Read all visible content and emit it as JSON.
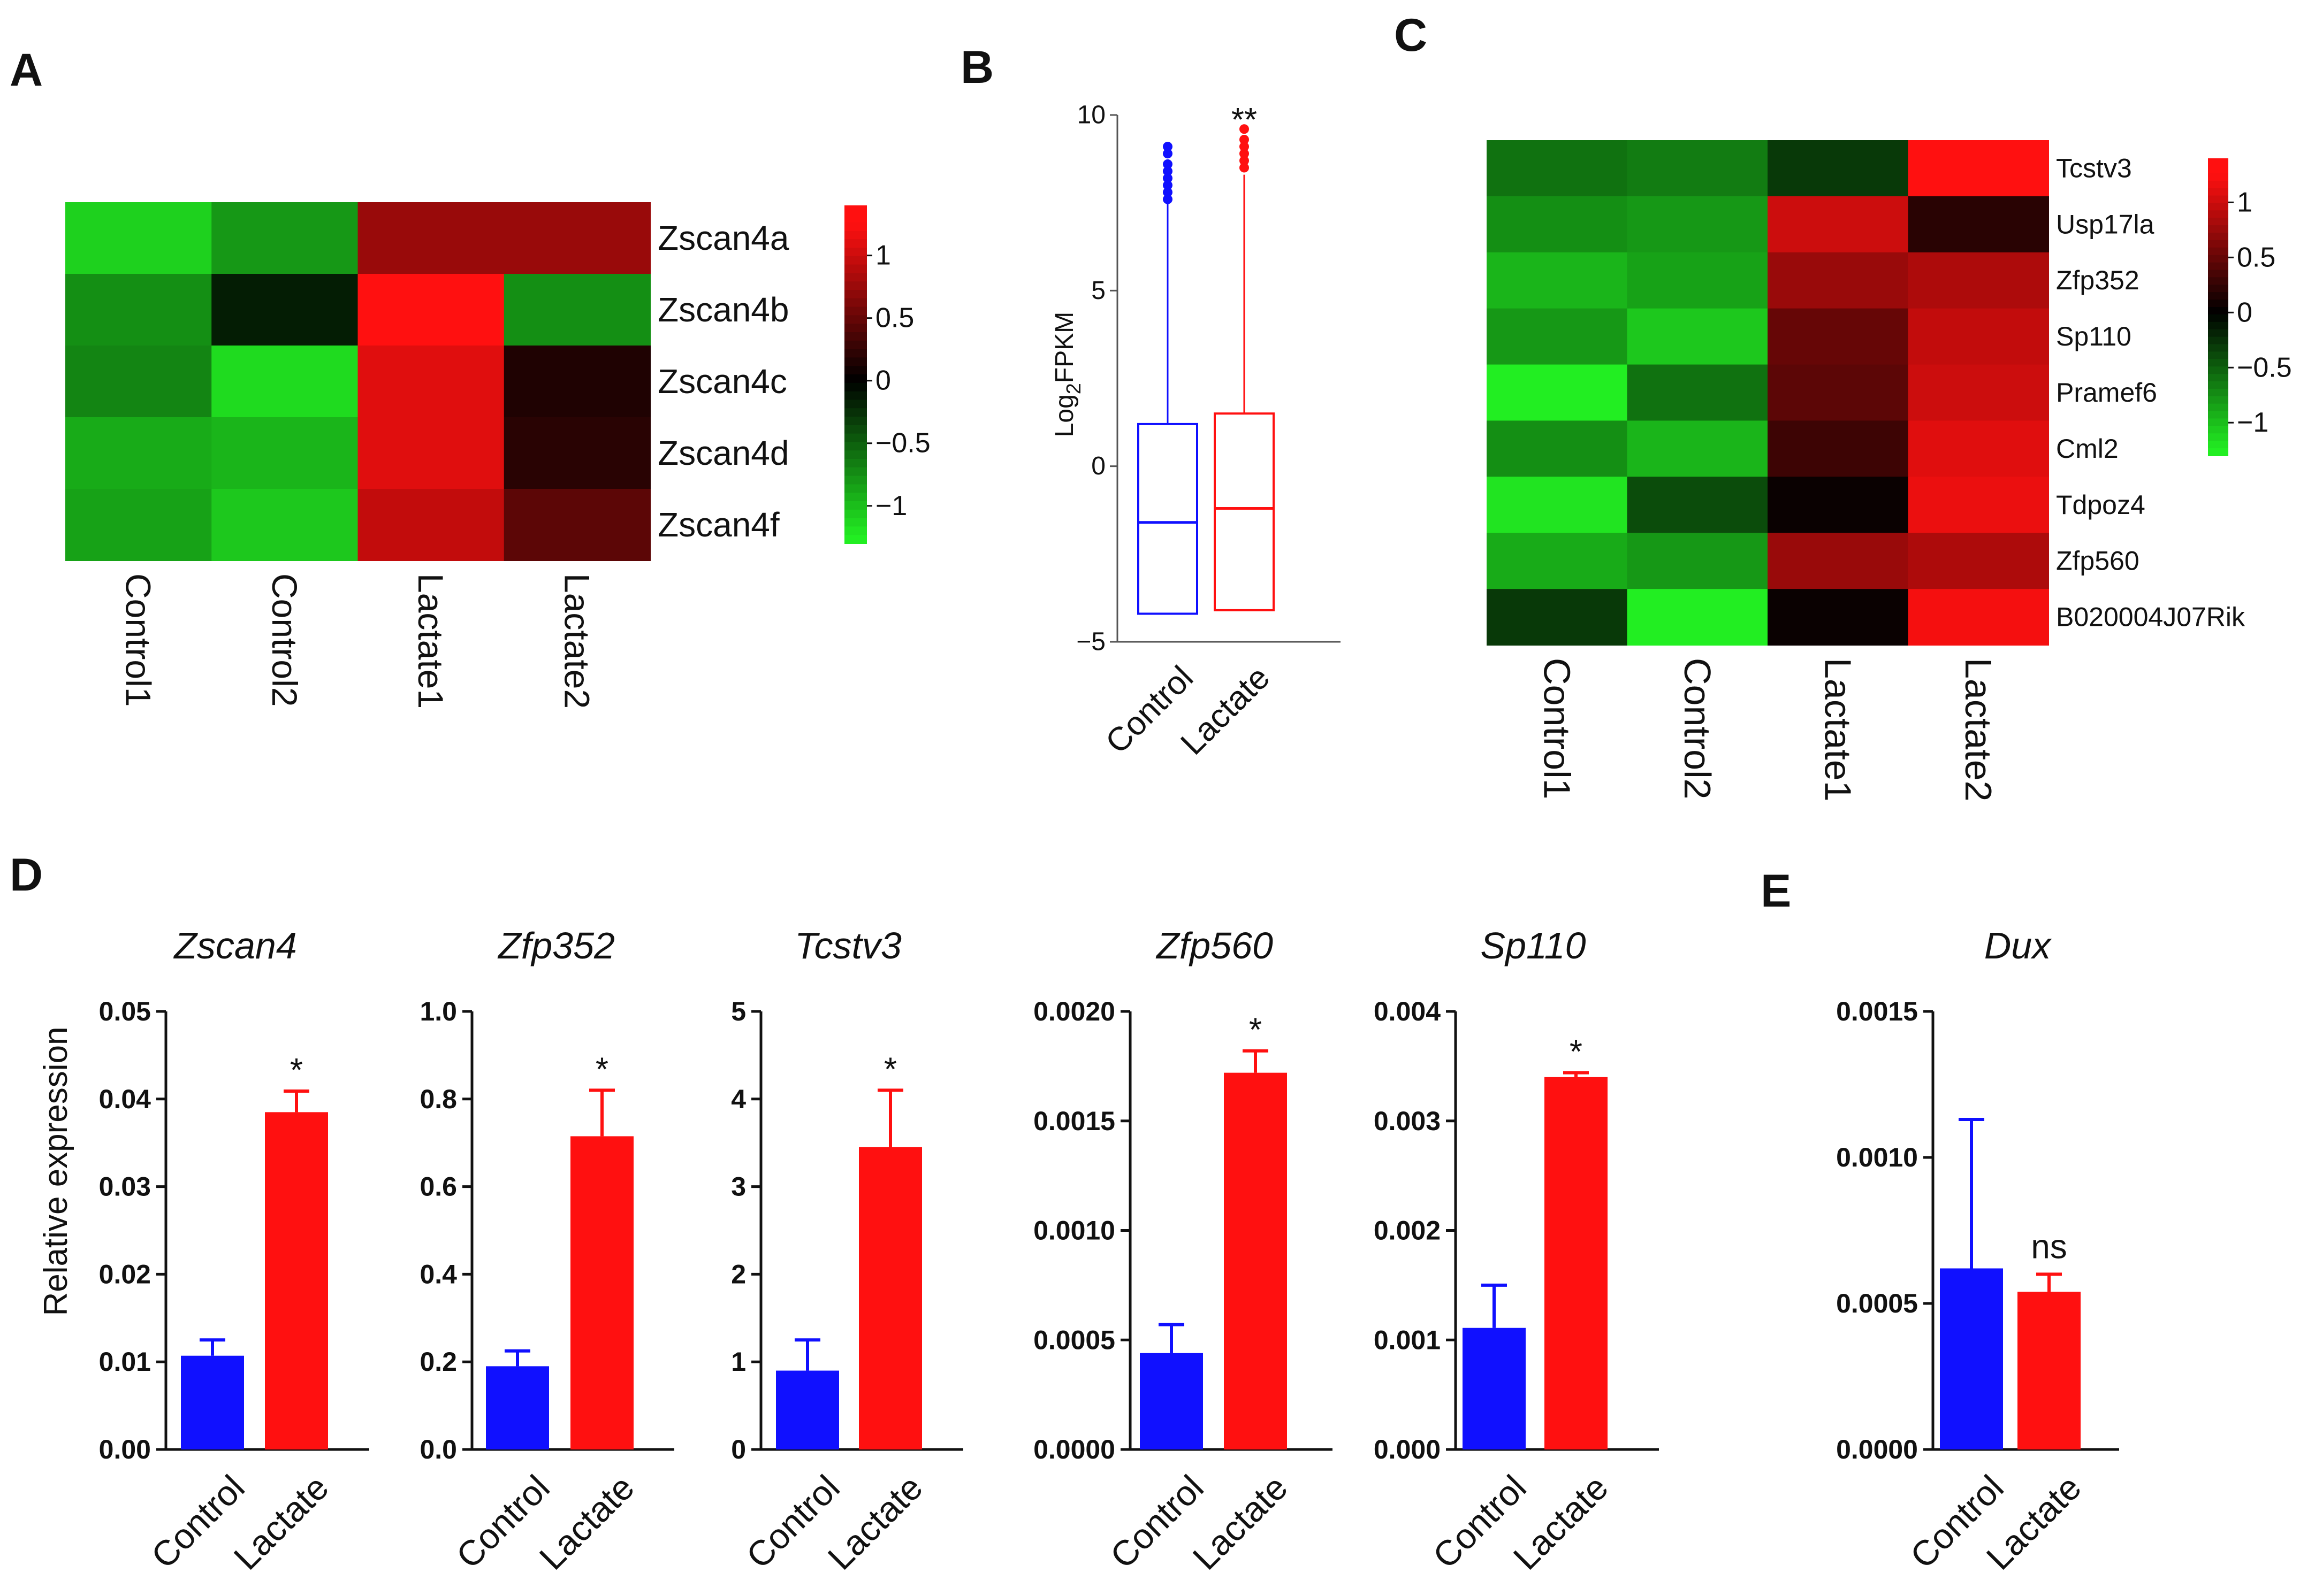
{
  "colors": {
    "control": "#1010ff",
    "lactate": "#ff1010",
    "heat_low": "#22ee22",
    "heat_mid": "#000000",
    "heat_high": "#ff1010"
  },
  "panel_letters": {
    "A": "A",
    "B": "B",
    "C": "C",
    "D": "D",
    "E": "E"
  },
  "chart_data": [
    {
      "id": "A",
      "type": "heatmap",
      "rows": [
        "Zscan4a",
        "Zscan4b",
        "Zscan4c",
        "Zscan4d",
        "Zscan4f"
      ],
      "columns": [
        "Control1",
        "Control2",
        "Lactate1",
        "Lactate2"
      ],
      "values": [
        [
          -1.1,
          -0.8,
          0.75,
          0.75
        ],
        [
          -0.75,
          -0.15,
          1.35,
          -0.75
        ],
        [
          -0.7,
          -1.15,
          1.1,
          0.15
        ],
        [
          -0.9,
          -0.95,
          1.1,
          0.2
        ],
        [
          -0.85,
          -1.05,
          0.95,
          0.45
        ]
      ],
      "scale": {
        "min": -1.3,
        "max": 1.4
      },
      "colorbar_ticks": [
        {
          "value": 1,
          "label": "1"
        },
        {
          "value": 0.5,
          "label": "0.5"
        },
        {
          "value": 0,
          "label": "0"
        },
        {
          "value": -0.5,
          "label": "−0.5"
        },
        {
          "value": -1,
          "label": "−1"
        }
      ]
    },
    {
      "id": "B",
      "type": "box",
      "ylabel_main": "Log",
      "ylabel_sub": "2",
      "ylabel_tail": "FPKM",
      "ylim": [
        -5,
        10
      ],
      "yticks": [
        {
          "value": 10,
          "label": "10"
        },
        {
          "value": 5,
          "label": "5"
        },
        {
          "value": 0,
          "label": "0"
        },
        {
          "value": -5,
          "label": "−5"
        }
      ],
      "categories": [
        "Control",
        "Lactate"
      ],
      "boxes": [
        {
          "name": "Control",
          "whisker_low": -4.2,
          "q1": -4.2,
          "median": -1.6,
          "q3": 1.2,
          "whisker_high": 7.5,
          "outliers": [
            7.6,
            7.8,
            8.0,
            8.2,
            8.4,
            8.6,
            8.9,
            9.1
          ]
        },
        {
          "name": "Lactate",
          "whisker_low": -4.1,
          "q1": -4.1,
          "median": -1.2,
          "q3": 1.5,
          "whisker_high": 8.3,
          "outliers": [
            8.5,
            8.7,
            8.9,
            9.1,
            9.3,
            9.6
          ]
        }
      ],
      "significance": "**"
    },
    {
      "id": "C",
      "type": "heatmap",
      "rows": [
        "Tcstv3",
        "Usp17la",
        "Zfp352",
        "Sp110",
        "Pramef6",
        "Cml2",
        "Tdpoz4",
        "Zfp560",
        "B020004J07Rik"
      ],
      "columns": [
        "Control1",
        "Control2",
        "Lactate1",
        "Lactate2"
      ],
      "values": [
        [
          -0.6,
          -0.65,
          -0.3,
          1.4
        ],
        [
          -0.75,
          -0.8,
          1.0,
          0.2
        ],
        [
          -0.95,
          -0.85,
          0.75,
          0.85
        ],
        [
          -0.8,
          -1.05,
          0.5,
          0.95
        ],
        [
          -1.25,
          -0.6,
          0.45,
          1.0
        ],
        [
          -0.75,
          -0.95,
          0.3,
          1.1
        ],
        [
          -1.2,
          -0.4,
          0.05,
          1.15
        ],
        [
          -0.9,
          -0.8,
          0.75,
          0.85
        ],
        [
          -0.3,
          -1.25,
          0.05,
          1.2
        ]
      ],
      "scale": {
        "min": -1.3,
        "max": 1.4
      },
      "colorbar_ticks": [
        {
          "value": 1,
          "label": "1"
        },
        {
          "value": 0.5,
          "label": "0.5"
        },
        {
          "value": 0,
          "label": "0"
        },
        {
          "value": -0.5,
          "label": "−0.5"
        },
        {
          "value": -1,
          "label": "−1"
        }
      ]
    },
    {
      "id": "D1",
      "type": "bar",
      "title": "Zscan4",
      "ylabel": "Relative expression",
      "categories": [
        "Control",
        "Lactate"
      ],
      "values": [
        0.0107,
        0.0385
      ],
      "errors": [
        0.0018,
        0.0024
      ],
      "ylim": [
        0,
        0.05
      ],
      "yticks": [
        {
          "value": 0,
          "label": "0.00"
        },
        {
          "value": 0.01,
          "label": "0.01"
        },
        {
          "value": 0.02,
          "label": "0.02"
        },
        {
          "value": 0.03,
          "label": "0.03"
        },
        {
          "value": 0.04,
          "label": "0.04"
        },
        {
          "value": 0.05,
          "label": "0.05"
        }
      ],
      "significance": "*"
    },
    {
      "id": "D2",
      "type": "bar",
      "title": "Zfp352",
      "categories": [
        "Control",
        "Lactate"
      ],
      "values": [
        0.19,
        0.715
      ],
      "errors": [
        0.035,
        0.105
      ],
      "ylim": [
        0,
        1.0
      ],
      "yticks": [
        {
          "value": 0,
          "label": "0.0"
        },
        {
          "value": 0.2,
          "label": "0.2"
        },
        {
          "value": 0.4,
          "label": "0.4"
        },
        {
          "value": 0.6,
          "label": "0.6"
        },
        {
          "value": 0.8,
          "label": "0.8"
        },
        {
          "value": 1.0,
          "label": "1.0"
        }
      ],
      "significance": "*"
    },
    {
      "id": "D3",
      "type": "bar",
      "title": "Tcstv3",
      "categories": [
        "Control",
        "Lactate"
      ],
      "values": [
        0.9,
        3.45
      ],
      "errors": [
        0.35,
        0.65
      ],
      "ylim": [
        0,
        5
      ],
      "yticks": [
        {
          "value": 0,
          "label": "0"
        },
        {
          "value": 1,
          "label": "1"
        },
        {
          "value": 2,
          "label": "2"
        },
        {
          "value": 3,
          "label": "3"
        },
        {
          "value": 4,
          "label": "4"
        },
        {
          "value": 5,
          "label": "5"
        }
      ],
      "significance": "*"
    },
    {
      "id": "D4",
      "type": "bar",
      "title": "Zfp560",
      "categories": [
        "Control",
        "Lactate"
      ],
      "values": [
        0.00044,
        0.00172
      ],
      "errors": [
        0.00013,
        0.0001
      ],
      "ylim": [
        0,
        0.002
      ],
      "yticks": [
        {
          "value": 0,
          "label": "0.0000"
        },
        {
          "value": 0.0005,
          "label": "0.0005"
        },
        {
          "value": 0.001,
          "label": "0.0010"
        },
        {
          "value": 0.0015,
          "label": "0.0015"
        },
        {
          "value": 0.002,
          "label": "0.0020"
        }
      ],
      "significance": "*"
    },
    {
      "id": "D5",
      "type": "bar",
      "title": "Sp110",
      "categories": [
        "Control",
        "Lactate"
      ],
      "values": [
        0.00111,
        0.0034
      ],
      "errors": [
        0.00039,
        4e-05
      ],
      "ylim": [
        0,
        0.004
      ],
      "yticks": [
        {
          "value": 0,
          "label": "0.000"
        },
        {
          "value": 0.001,
          "label": "0.001"
        },
        {
          "value": 0.002,
          "label": "0.002"
        },
        {
          "value": 0.003,
          "label": "0.003"
        },
        {
          "value": 0.004,
          "label": "0.004"
        }
      ],
      "significance": "*"
    },
    {
      "id": "E",
      "type": "bar",
      "title": "Dux",
      "categories": [
        "Control",
        "Lactate"
      ],
      "values": [
        0.00062,
        0.00054
      ],
      "errors": [
        0.00051,
        6e-05
      ],
      "ylim": [
        0,
        0.0015
      ],
      "yticks": [
        {
          "value": 0,
          "label": "0.0000"
        },
        {
          "value": 0.0005,
          "label": "0.0005"
        },
        {
          "value": 0.001,
          "label": "0.0010"
        },
        {
          "value": 0.0015,
          "label": "0.0015"
        }
      ],
      "significance": "ns"
    }
  ]
}
